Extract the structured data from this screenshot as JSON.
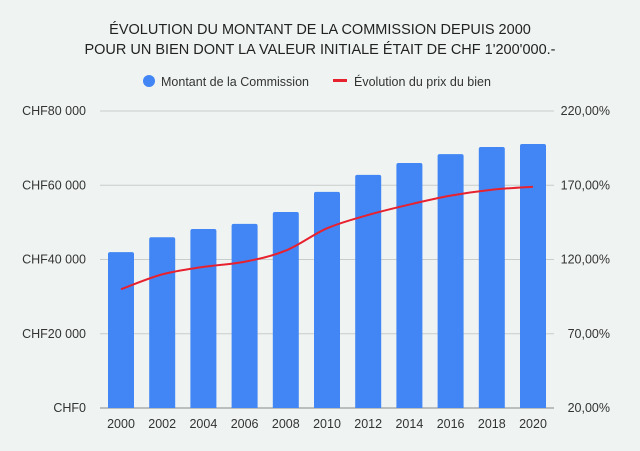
{
  "chart_data": {
    "type": "bar+line",
    "title_lines": [
      "ÉVOLUTION DU MONTANT DE LA COMMISSION DEPUIS 2000",
      "POUR UN BIEN DONT LA VALEUR INITIALE ÉTAIT DE CHF 1'200'000.-"
    ],
    "categories": [
      "2000",
      "2002",
      "2004",
      "2006",
      "2008",
      "2010",
      "2012",
      "2014",
      "2016",
      "2018",
      "2020"
    ],
    "series": [
      {
        "name": "Montant de la Commission",
        "type": "bar",
        "axis": "left",
        "color": "#4285f4",
        "values": [
          42000,
          46000,
          48200,
          49600,
          52800,
          58200,
          62800,
          66000,
          68400,
          70300,
          71100
        ]
      },
      {
        "name": "Évolution du prix du bien",
        "type": "line",
        "axis": "right",
        "color": "#e8212e",
        "values": [
          100,
          110,
          115,
          118.5,
          126,
          141,
          150,
          157,
          163,
          167,
          169
        ]
      }
    ],
    "left_axis": {
      "ylim": [
        0,
        80000
      ],
      "ticks": [
        0,
        20000,
        40000,
        60000,
        80000
      ],
      "tick_labels": [
        "CHF0",
        "CHF20 000",
        "CHF40 000",
        "CHF60 000",
        "CHF80 000"
      ]
    },
    "right_axis": {
      "ylim": [
        20,
        220
      ],
      "ticks": [
        20,
        70,
        120,
        170,
        220
      ],
      "tick_labels": [
        "20,00%",
        "70,00%",
        "120,00%",
        "170,00%",
        "220,00%"
      ]
    },
    "grid": true,
    "legend_position": "top"
  }
}
